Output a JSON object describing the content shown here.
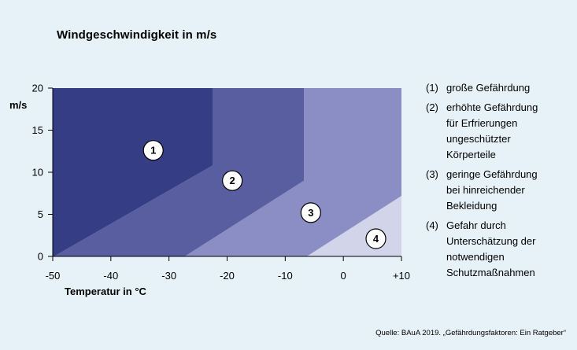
{
  "chart_data": {
    "type": "area",
    "title": "Windgeschwindigkeit in m/s",
    "xlabel": "Temperatur in °C",
    "ylabel": "m/s",
    "xlim": [
      -50,
      10
    ],
    "ylim": [
      0,
      20
    ],
    "x_ticks": [
      -50,
      -40,
      -30,
      -20,
      -10,
      0,
      10
    ],
    "x_tick_labels": [
      "-50",
      "-40",
      "-30",
      "-20",
      "-10",
      "0",
      "+10"
    ],
    "y_ticks": [
      0,
      5,
      10,
      15,
      20
    ],
    "y_tick_labels": [
      "0",
      "5",
      "10",
      "15",
      "20"
    ],
    "grid": false,
    "legend_position": "right",
    "zones": [
      {
        "id": "4",
        "label": "4",
        "name": "Gefahr durch\nUnterschätzung der\nnotwendigen\nSchutzmaßnahmen",
        "color": "#d2d4ea",
        "polygon": [
          [
            -6.3,
            0
          ],
          [
            10,
            0
          ],
          [
            10,
            7.2
          ]
        ],
        "label_at": [
          5.6,
          2.1
        ]
      },
      {
        "id": "3",
        "label": "3",
        "name": "geringe Gefährdung\nbei hinreichender\nBekleidung",
        "color": "#8b8ec4",
        "polygon": [
          [
            -27.3,
            0
          ],
          [
            -6.3,
            0
          ],
          [
            10,
            7.2
          ],
          [
            10,
            20
          ],
          [
            -6.8,
            20
          ],
          [
            -6.8,
            9
          ],
          [
            -27.3,
            0
          ]
        ],
        "label_at": [
          -5.6,
          5.2
        ]
      },
      {
        "id": "2",
        "label": "2",
        "name": "erhöhte Gefährdung\nfür Erfrierungen\nungeschützter\nKörperteile",
        "color": "#585e9f",
        "polygon": [
          [
            -49.8,
            0
          ],
          [
            -27.3,
            0
          ],
          [
            -6.8,
            9
          ],
          [
            -6.8,
            20
          ],
          [
            -22.5,
            20
          ],
          [
            -22.5,
            10.8
          ],
          [
            -49.8,
            0
          ]
        ],
        "label_at": [
          -19.1,
          9.0
        ]
      },
      {
        "id": "1",
        "label": "1",
        "name": "große Gefährdung",
        "color": "#353d84",
        "polygon": [
          [
            -50,
            0
          ],
          [
            -49.8,
            0
          ],
          [
            -22.5,
            10.8
          ],
          [
            -22.5,
            20
          ],
          [
            -50,
            20
          ]
        ],
        "label_at": [
          -32.7,
          12.6
        ]
      }
    ]
  },
  "legend": [
    {
      "num": "(1)",
      "text": "große Gefährdung"
    },
    {
      "num": "(2)",
      "text": "erhöhte Gefährdung\nfür Erfrierungen\nungeschützter\nKörperteile"
    },
    {
      "num": "(3)",
      "text": "geringe Gefährdung\nbei hinreichender\nBekleidung"
    },
    {
      "num": "(4)",
      "text": "Gefahr durch\nUnterschätzung der\nnotwendigen\nSchutzmaßnahmen"
    }
  ],
  "source": "Quelle: BAuA 2019. „Gefährdungsfaktoren: Ein Ratgeber“"
}
